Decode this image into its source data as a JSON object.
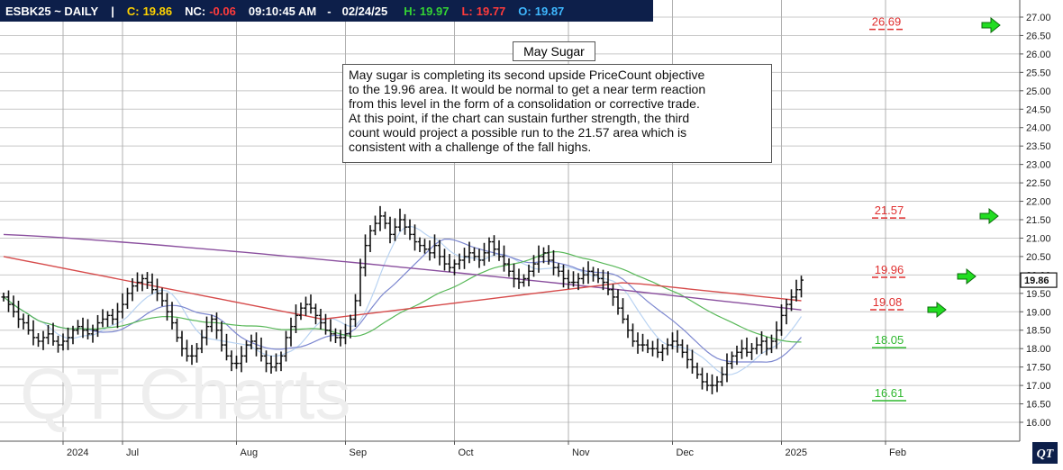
{
  "header": {
    "symbol": "ESBK25 ~ DAILY",
    "sep": "|",
    "close_label": "C:",
    "close_value": "19.86",
    "nc_label": "NC:",
    "nc_value": "-0.06",
    "time": "09:10:45 AM",
    "dash": "-",
    "date": "02/24/25",
    "high_label": "H:",
    "high_value": "19.97",
    "low_label": "L:",
    "low_value": "19.77",
    "open_label": "O:",
    "open_value": "19.87"
  },
  "annotation": {
    "title": "May Sugar",
    "text": "May sugar is completing its second upside PriceCount objective\nto the 19.96 area.  It would be normal to get a near term reaction\nfrom this level in the form of a consolidation or corrective trade.\nAt this point, if the chart can sustain further strength, the third\ncount would project a possible run to the 21.57 area which is\nconsistent with a challenge of the fall highs."
  },
  "watermark": "QT Charts",
  "logo": "QT",
  "colors": {
    "header_bg": "#0d1f4a",
    "close": "#ffd200",
    "nc": "#ff3b3b",
    "high": "#34d334",
    "low": "#ff3b3b",
    "open": "#3fb8ff",
    "red_level": "#e03030",
    "green_level": "#2fb82f",
    "arrow": "#22dd22"
  },
  "chart_data": {
    "type": "ohlc",
    "y_axis": {
      "min": 15.75,
      "max": 27.0,
      "ticks": [
        "16.00",
        "16.50",
        "17.00",
        "17.50",
        "18.00",
        "18.50",
        "19.00",
        "19.50",
        "20.00",
        "20.50",
        "21.00",
        "21.50",
        "22.00",
        "22.50",
        "23.00",
        "23.50",
        "24.00",
        "24.50",
        "25.00",
        "25.50",
        "26.00",
        "26.50",
        "27.00"
      ],
      "last_price_label": "19.86"
    },
    "x_axis": {
      "labels": [
        {
          "text": "2024",
          "bar": 12
        },
        {
          "text": "Jul",
          "bar": 24
        },
        {
          "text": "Aug",
          "bar": 47
        },
        {
          "text": "Sep",
          "bar": 69
        },
        {
          "text": "Oct",
          "bar": 91
        },
        {
          "text": "Nov",
          "bar": 114
        },
        {
          "text": "Dec",
          "bar": 135
        },
        {
          "text": "2025",
          "bar": 157
        },
        {
          "text": "Feb",
          "bar": 178
        }
      ]
    },
    "grid": true,
    "close_series": [
      19.4,
      19.2,
      19.0,
      18.8,
      18.7,
      18.5,
      18.3,
      18.2,
      18.3,
      18.4,
      18.2,
      18.1,
      18.2,
      18.3,
      18.5,
      18.6,
      18.5,
      18.4,
      18.5,
      18.7,
      18.8,
      18.9,
      18.8,
      19.0,
      19.2,
      19.5,
      19.7,
      19.8,
      19.9,
      19.8,
      19.6,
      19.5,
      19.3,
      19.0,
      18.7,
      18.3,
      18.0,
      17.8,
      17.8,
      18.0,
      18.3,
      18.6,
      18.8,
      18.5,
      18.1,
      17.8,
      17.6,
      17.6,
      17.8,
      18.1,
      18.2,
      18.0,
      17.8,
      17.6,
      17.5,
      17.6,
      17.8,
      18.3,
      18.6,
      18.9,
      19.1,
      19.2,
      19.1,
      18.9,
      18.7,
      18.5,
      18.4,
      18.3,
      18.3,
      18.4,
      18.8,
      19.3,
      20.2,
      20.8,
      21.2,
      21.4,
      21.6,
      21.4,
      21.1,
      21.3,
      21.5,
      21.3,
      21.1,
      20.9,
      20.8,
      20.7,
      20.6,
      20.8,
      20.5,
      20.3,
      20.2,
      20.3,
      20.4,
      20.5,
      20.6,
      20.5,
      20.4,
      20.6,
      20.9,
      20.7,
      20.5,
      20.3,
      20.1,
      19.9,
      19.8,
      19.9,
      20.1,
      20.3,
      20.5,
      20.6,
      20.4,
      20.2,
      20.1,
      19.9,
      19.8,
      19.8,
      19.9,
      20.0,
      20.1,
      20.0,
      19.9,
      19.8,
      19.6,
      19.4,
      19.1,
      18.8,
      18.5,
      18.2,
      18.1,
      18.1,
      18.0,
      18.0,
      17.9,
      18.0,
      18.1,
      18.2,
      18.1,
      17.9,
      17.7,
      17.5,
      17.3,
      17.1,
      17.0,
      17.0,
      17.1,
      17.3,
      17.6,
      17.8,
      17.9,
      18.0,
      17.9,
      18.0,
      18.1,
      18.2,
      18.0,
      18.2,
      18.5,
      18.9,
      19.2,
      19.4,
      19.6,
      19.86
    ],
    "levels": [
      {
        "value": 26.69,
        "label": "26.69",
        "color": "red"
      },
      {
        "value": 21.57,
        "label": "21.57",
        "color": "red"
      },
      {
        "value": 19.96,
        "label": "19.96",
        "color": "red"
      },
      {
        "value": 19.08,
        "label": "19.08",
        "color": "red"
      },
      {
        "value": 18.05,
        "label": "18.05",
        "color": "green"
      },
      {
        "value": 16.61,
        "label": "16.61",
        "color": "green"
      }
    ],
    "arrows": [
      {
        "bar": 205,
        "price": 26.69
      },
      {
        "bar": 205,
        "price": 21.57
      },
      {
        "bar": 180,
        "price": 19.96
      },
      {
        "bar": 175,
        "price": 19.0
      }
    ],
    "moving_averages": [
      {
        "color": "#8a4f9e",
        "start": 21.1,
        "end": 19.05
      },
      {
        "color": "#d64b4b",
        "start": 20.5,
        "end": 19.3
      }
    ]
  }
}
